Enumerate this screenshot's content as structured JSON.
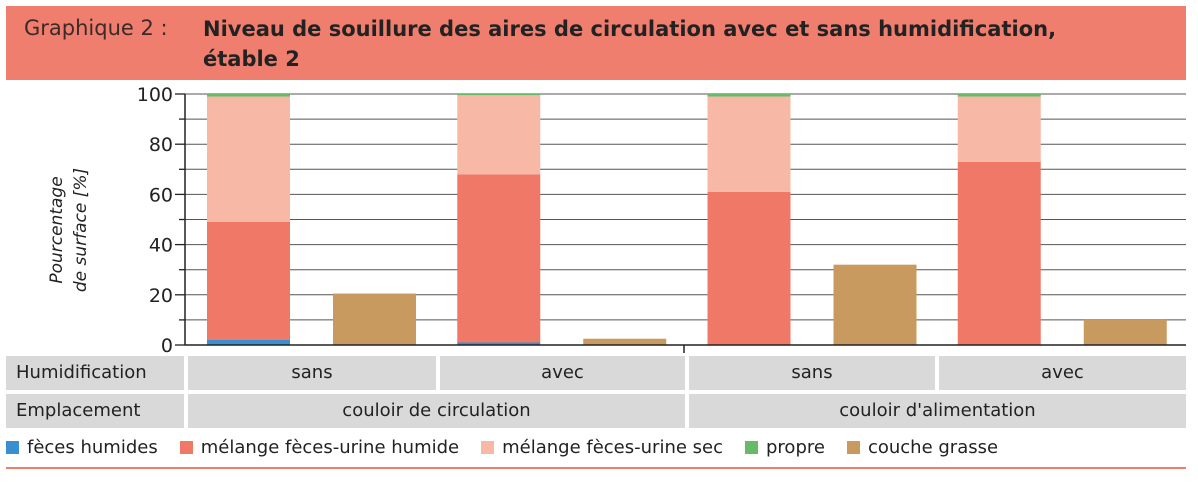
{
  "header": {
    "prefix": "Graphique 2 :",
    "title": "Niveau de souillure des aires de circulation avec et sans humidification, étable 2"
  },
  "chart_data": {
    "type": "bar",
    "stacked": true,
    "ylabel_line1": "Pourcentage",
    "ylabel_line2": "de surface [%]",
    "ylim": [
      0,
      100
    ],
    "yticks": [
      "0",
      "20",
      "40",
      "60",
      "80",
      "100"
    ],
    "grid": true,
    "colors": {
      "feces_humides": "#3a8fd0",
      "melange_humide": "#f07866",
      "melange_sec": "#f8b8a6",
      "propre": "#66bb6a",
      "couche_grasse": "#c99a5f"
    },
    "groups": [
      {
        "stack": {
          "feces_humides": 2,
          "melange_humide": 47,
          "melange_sec": 50,
          "propre": 1
        },
        "grasse": 20.5
      },
      {
        "stack": {
          "feces_humides": 1,
          "melange_humide": 67,
          "melange_sec": 31.5,
          "propre": 0.5
        },
        "grasse": 2.5
      },
      {
        "stack": {
          "feces_humides": 0,
          "melange_humide": 61,
          "melange_sec": 38,
          "propre": 1
        },
        "grasse": 32
      },
      {
        "stack": {
          "feces_humides": 0,
          "melange_humide": 73,
          "melange_sec": 26,
          "propre": 1
        },
        "grasse": 10
      }
    ]
  },
  "table": {
    "row1_label": "Humidification",
    "row1_values": [
      "sans",
      "avec",
      "sans",
      "avec"
    ],
    "row2_label": "Emplacement",
    "row2_values": [
      "couloir de circulation",
      "couloir d'alimentation"
    ]
  },
  "legend": [
    {
      "label": "fèces humides",
      "color": "#3a8fd0"
    },
    {
      "label": "mélange fèces-urine humide",
      "color": "#f07866"
    },
    {
      "label": "mélange fèces-urine sec",
      "color": "#f8b8a6"
    },
    {
      "label": "propre",
      "color": "#66bb6a"
    },
    {
      "label": "couche grasse",
      "color": "#c99a5f"
    }
  ]
}
